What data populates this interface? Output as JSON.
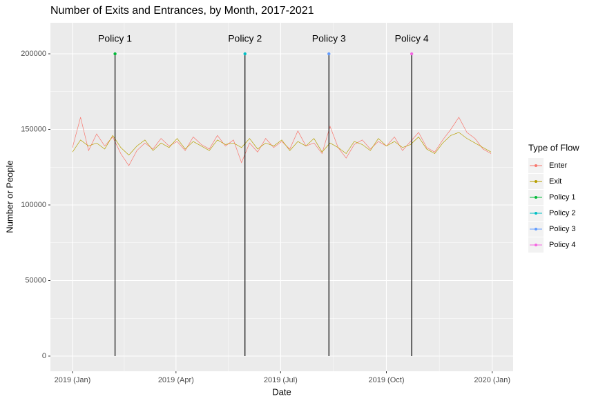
{
  "chart_data": {
    "type": "line",
    "title": "Number of Exits and Entrances, by Month, 2017-2021",
    "x_label": "Date",
    "y_label": "Number or People",
    "legend_title": "Type of Flow",
    "legend_position": "right",
    "grid": true,
    "xlim": [
      -19.2,
      383.2
    ],
    "xticks": [
      {
        "value": 0,
        "label": "2019 (Jan)"
      },
      {
        "value": 90,
        "label": "2019 (Apr)"
      },
      {
        "value": 181,
        "label": "2019 (Jul)"
      },
      {
        "value": 273,
        "label": "2019 (Oct)"
      },
      {
        "value": 365,
        "label": "2020 (Jan)"
      }
    ],
    "ylim": [
      -10046,
      220548
    ],
    "yticks": [
      0,
      50000,
      100000,
      150000,
      200000
    ],
    "series": [
      {
        "name": "Enter",
        "color": "#F8766D",
        "x": [
          0,
          7,
          14,
          21,
          28,
          35,
          42,
          49,
          56,
          63,
          70,
          77,
          84,
          91,
          98,
          105,
          112,
          119,
          126,
          133,
          140,
          147,
          154,
          161,
          168,
          175,
          182,
          189,
          196,
          203,
          210,
          217,
          224,
          231,
          238,
          245,
          252,
          259,
          266,
          273,
          280,
          287,
          294,
          301,
          308,
          315,
          322,
          329,
          336,
          343,
          350,
          357,
          364
        ],
        "values": [
          138000,
          158000,
          136000,
          147000,
          139000,
          145000,
          134000,
          126000,
          136000,
          141000,
          137000,
          144000,
          139000,
          142000,
          136000,
          145000,
          140000,
          137000,
          146000,
          139000,
          143000,
          128000,
          141000,
          135000,
          144000,
          138000,
          142000,
          137000,
          149000,
          139000,
          141000,
          134000,
          152000,
          138000,
          131000,
          140000,
          143000,
          137000,
          142000,
          139000,
          145000,
          136000,
          142000,
          148000,
          138000,
          135000,
          143000,
          150000,
          158000,
          148000,
          144000,
          137000,
          134000
        ]
      },
      {
        "name": "Exit",
        "color": "#B79F00",
        "x": [
          0,
          7,
          14,
          21,
          28,
          35,
          42,
          49,
          56,
          63,
          70,
          77,
          84,
          91,
          98,
          105,
          112,
          119,
          126,
          133,
          140,
          147,
          154,
          161,
          168,
          175,
          182,
          189,
          196,
          203,
          210,
          217,
          224,
          231,
          238,
          245,
          252,
          259,
          266,
          273,
          280,
          287,
          294,
          301,
          308,
          315,
          322,
          329,
          336,
          343,
          350,
          357,
          364
        ],
        "values": [
          135000,
          143000,
          139000,
          141000,
          137000,
          146000,
          138000,
          133000,
          139000,
          143000,
          136000,
          141000,
          138000,
          144000,
          137000,
          142000,
          139000,
          136000,
          143000,
          140000,
          141000,
          138000,
          144000,
          137000,
          141000,
          139000,
          143000,
          136000,
          142000,
          139000,
          144000,
          135000,
          141000,
          138000,
          134000,
          142000,
          140000,
          136000,
          144000,
          139000,
          142000,
          138000,
          140000,
          145000,
          137000,
          134000,
          141000,
          146000,
          148000,
          144000,
          141000,
          138000,
          135000
        ]
      },
      {
        "name": "Policy 1",
        "color": "#00BA38",
        "x": [
          37,
          37
        ],
        "values": [
          0,
          200000
        ]
      },
      {
        "name": "Policy 2",
        "color": "#00BFC4",
        "x": [
          150,
          150
        ],
        "values": [
          0,
          200000
        ]
      },
      {
        "name": "Policy 3",
        "color": "#619CFF",
        "x": [
          223,
          223
        ],
        "values": [
          0,
          200000
        ]
      },
      {
        "name": "Policy 4",
        "color": "#F564E3",
        "x": [
          295,
          295
        ],
        "values": [
          0,
          200000
        ]
      }
    ],
    "policy_line_color": "#000000"
  }
}
